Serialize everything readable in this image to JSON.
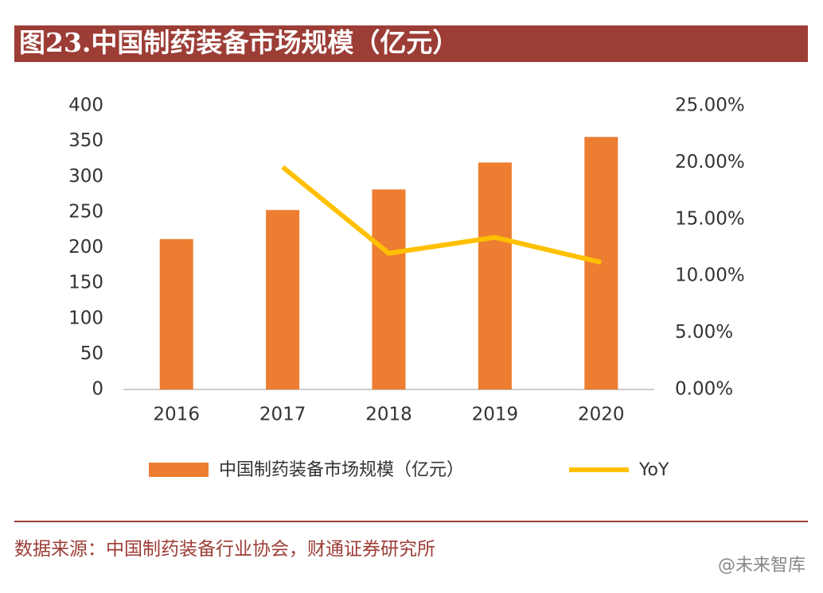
{
  "header": {
    "title": "图23.中国制药装备市场规模（亿元）"
  },
  "chart_data": {
    "type": "bar_line",
    "categories": [
      "2016",
      "2017",
      "2018",
      "2019",
      "2020"
    ],
    "series": [
      {
        "name": "中国制药装备市场规模（亿元）",
        "type": "bar",
        "color": "#ed7d31",
        "values": [
          212,
          253,
          282,
          320,
          356
        ]
      },
      {
        "name": "YoY",
        "type": "line",
        "axis": "y2",
        "color": "#ffc000",
        "values": [
          null,
          19.6,
          12.0,
          13.4,
          11.2
        ]
      }
    ],
    "ylim": [
      0,
      400
    ],
    "yticks": [
      0,
      50,
      100,
      150,
      200,
      250,
      300,
      350,
      400
    ],
    "y2lim": [
      0,
      25
    ],
    "y2ticks": [
      {
        "value": 0,
        "label": "0.00%"
      },
      {
        "value": 5,
        "label": "5.00%"
      },
      {
        "value": 10,
        "label": "10.00%"
      },
      {
        "value": 15,
        "label": "15.00%"
      },
      {
        "value": 20,
        "label": "20.00%"
      },
      {
        "value": 25,
        "label": "25.00%"
      }
    ],
    "grid": false,
    "legend": "bottom"
  },
  "footer": {
    "source": "数据来源：中国制药装备行业协会，财通证券研究所",
    "watermark": "@未来智库"
  }
}
